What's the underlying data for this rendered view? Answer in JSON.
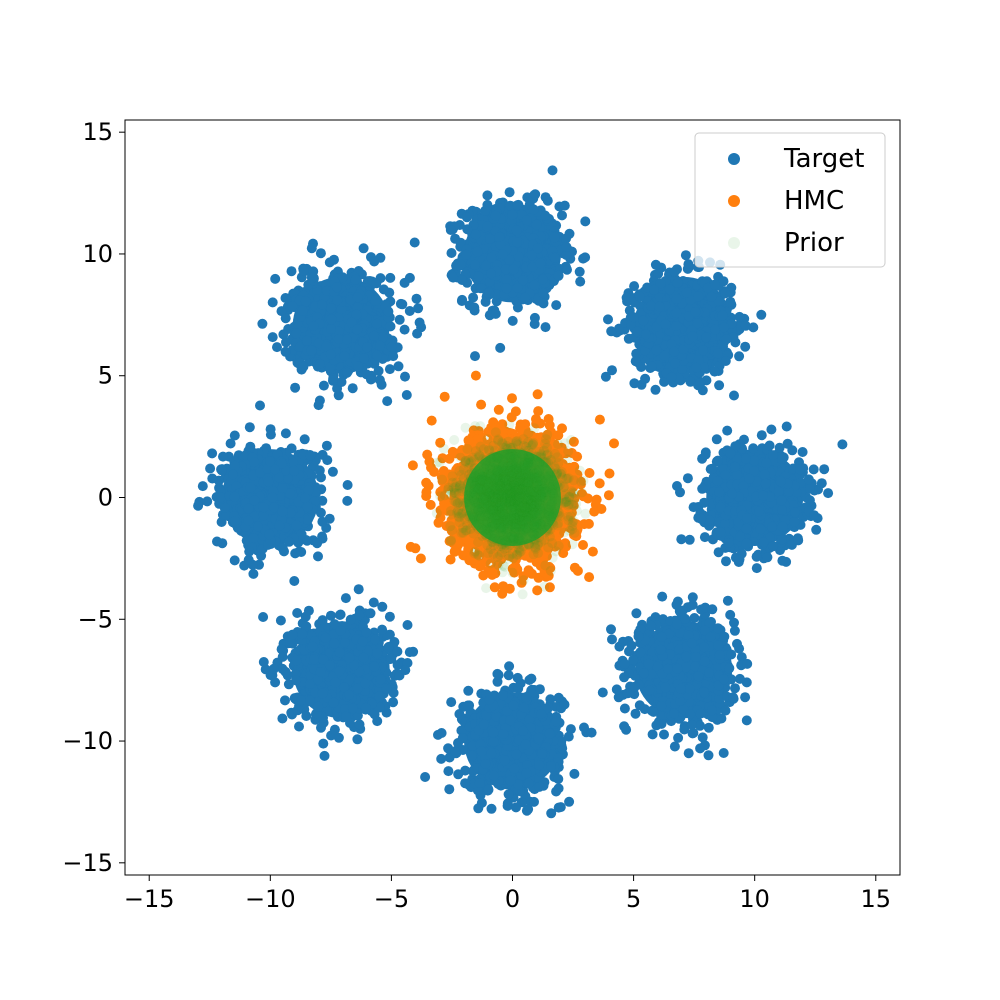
{
  "chart_data": {
    "type": "scatter",
    "title": "",
    "xlabel": "",
    "ylabel": "",
    "xlim": [
      -16,
      16
    ],
    "ylim": [
      -15.5,
      15.5
    ],
    "grid": false,
    "legend_position": "top-right",
    "x_ticks": [
      {
        "value": -15,
        "label": "−15"
      },
      {
        "value": -10,
        "label": "−10"
      },
      {
        "value": -5,
        "label": "−5"
      },
      {
        "value": 0,
        "label": "0"
      },
      {
        "value": 5,
        "label": "5"
      },
      {
        "value": 10,
        "label": "10"
      },
      {
        "value": 15,
        "label": "15"
      }
    ],
    "y_ticks": [
      {
        "value": 15,
        "label": "15"
      },
      {
        "value": 10,
        "label": "10"
      },
      {
        "value": 5,
        "label": "5"
      },
      {
        "value": 0,
        "label": "0"
      },
      {
        "value": -5,
        "label": "−5"
      },
      {
        "value": -10,
        "label": "−10"
      },
      {
        "value": -15,
        "label": "−15"
      }
    ],
    "series": [
      {
        "name": "Target",
        "color": "#1f77b4",
        "clusters": [
          {
            "center": [
              0,
              10
            ],
            "std": 1.0
          },
          {
            "center": [
              7.07,
              7.07
            ],
            "std": 1.0
          },
          {
            "center": [
              10,
              0
            ],
            "std": 1.0
          },
          {
            "center": [
              7.07,
              -7.07
            ],
            "std": 1.0
          },
          {
            "center": [
              0,
              -10
            ],
            "std": 1.0
          },
          {
            "center": [
              -7.07,
              -7.07
            ],
            "std": 1.0
          },
          {
            "center": [
              -10,
              0
            ],
            "std": 1.0
          },
          {
            "center": [
              -7.07,
              7.07
            ],
            "std": 1.0
          }
        ]
      },
      {
        "name": "HMC",
        "color": "#ff7f0e",
        "clusters": [
          {
            "center": [
              0,
              0
            ],
            "std": 1.3
          }
        ]
      },
      {
        "name": "Prior",
        "color": "#2ca02c",
        "alpha": 0.1,
        "clusters": [
          {
            "center": [
              0,
              0
            ],
            "std": 1.0
          }
        ]
      }
    ]
  }
}
